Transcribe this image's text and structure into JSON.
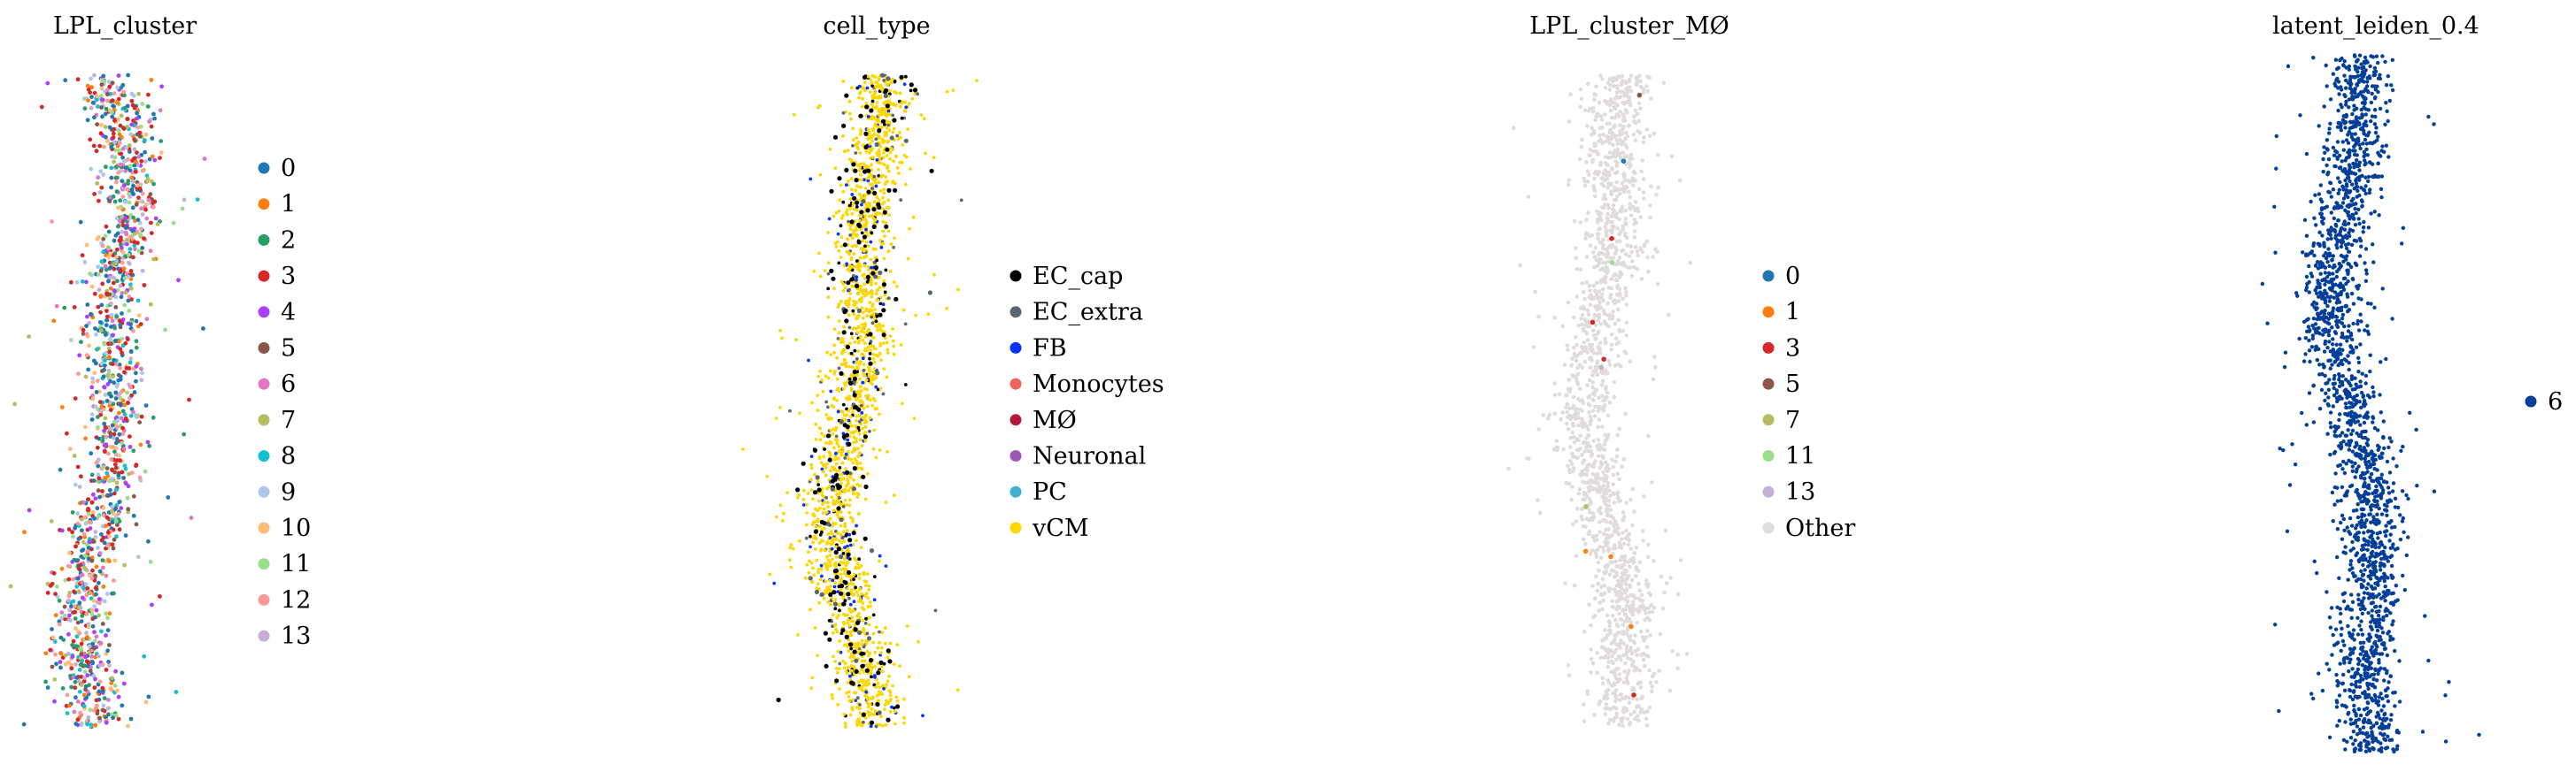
{
  "chart_data": [
    {
      "type": "scatter",
      "title": "LPL_cluster",
      "legend_position": "right",
      "grid": false,
      "legend": [
        {
          "label": "0",
          "color": "#1f77b4"
        },
        {
          "label": "1",
          "color": "#ff7f0e"
        },
        {
          "label": "2",
          "color": "#279e68"
        },
        {
          "label": "3",
          "color": "#d62728"
        },
        {
          "label": "4",
          "color": "#aa40fc"
        },
        {
          "label": "5",
          "color": "#8c564b"
        },
        {
          "label": "6",
          "color": "#e377c2"
        },
        {
          "label": "7",
          "color": "#b5bd61"
        },
        {
          "label": "8",
          "color": "#17becf"
        },
        {
          "label": "9",
          "color": "#aec7e8"
        },
        {
          "label": "10",
          "color": "#ffbb78"
        },
        {
          "label": "11",
          "color": "#98df8a"
        },
        {
          "label": "12",
          "color": "#ff9896"
        },
        {
          "label": "13",
          "color": "#c5b0d5"
        }
      ],
      "point_colors": [
        "#d62728",
        "#1f77b4",
        "#ff7f0e",
        "#279e68",
        "#8c564b",
        "#e377c2",
        "#d62728",
        "#1f77b4",
        "#aa40fc",
        "#17becf",
        "#b5bd61",
        "#aec7e8",
        "#ffbb78",
        "#98df8a",
        "#ff9896",
        "#c5b0d5",
        "#d62728",
        "#1f77b4"
      ],
      "seed": 11
    },
    {
      "type": "scatter",
      "title": "cell_type",
      "legend_position": "right",
      "grid": false,
      "legend": [
        {
          "label": "EC_cap",
          "color": "#000000"
        },
        {
          "label": "EC_extra",
          "color": "#5b6770"
        },
        {
          "label": "FB",
          "color": "#0433ff"
        },
        {
          "label": "Monocytes",
          "color": "#f0625c"
        },
        {
          "label": "MØ",
          "color": "#b5173c"
        },
        {
          "label": "Neuronal",
          "color": "#9b59b6"
        },
        {
          "label": "PC",
          "color": "#3fb1cf"
        },
        {
          "label": "vCM",
          "color": "#ffd700"
        }
      ],
      "point_colors": [
        "#ffd700",
        "#ffd700",
        "#ffd700",
        "#ffd700",
        "#ffd700",
        "#ffd700",
        "#ffd700",
        "#ffd700",
        "#ffd700",
        "#ffd700",
        "#ffd700",
        "#ffd700",
        "#ffd700",
        "#000000",
        "#5b6770",
        "#0433ff"
      ],
      "seed": 23
    },
    {
      "type": "scatter",
      "title": "LPL_cluster_MØ",
      "legend_position": "right",
      "grid": false,
      "legend": [
        {
          "label": "0",
          "color": "#1f77b4"
        },
        {
          "label": "1",
          "color": "#ff7f0e"
        },
        {
          "label": "3",
          "color": "#d62728"
        },
        {
          "label": "5",
          "color": "#8c564b"
        },
        {
          "label": "7",
          "color": "#b5bd61"
        },
        {
          "label": "11",
          "color": "#98df8a"
        },
        {
          "label": "13",
          "color": "#c5b0d5"
        },
        {
          "label": "Other",
          "color": "#e0dcdc"
        }
      ],
      "point_colors": [
        "#e0dcdc"
      ],
      "highlight_colors": [
        "#d62728",
        "#ff7f0e",
        "#1f77b4",
        "#c5b0d5",
        "#d62728",
        "#8c564b",
        "#ff7f0e",
        "#98df8a",
        "#d62728",
        "#ff7f0e",
        "#b5bd61",
        "#d62728"
      ],
      "seed": 37
    },
    {
      "type": "scatter",
      "title": "latent_leiden_0.4",
      "legend_position": "right",
      "grid": false,
      "legend": [
        {
          "label": "6",
          "color": "#023f99"
        }
      ],
      "point_colors": [
        "#023f99"
      ],
      "seed": 53
    }
  ]
}
